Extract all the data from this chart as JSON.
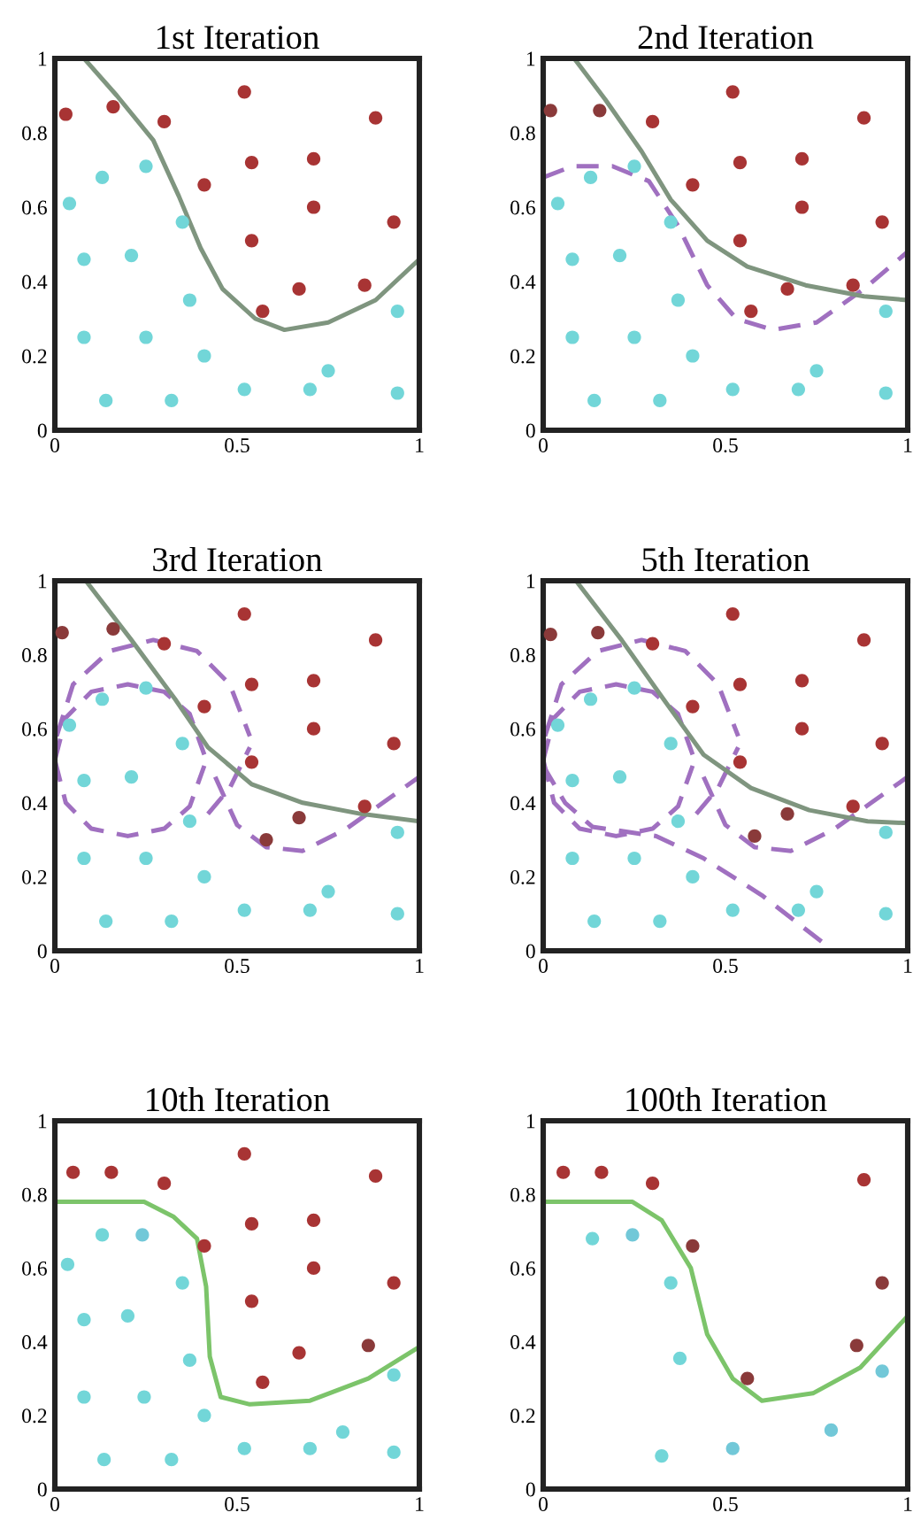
{
  "chart_data": [
    {
      "type": "scatter",
      "title": "1st Iteration",
      "xlim": [
        0,
        1
      ],
      "ylim": [
        0,
        1
      ],
      "xticks": [
        0,
        0.5,
        1
      ],
      "yticks": [
        0,
        0.2,
        0.4,
        0.6,
        0.8,
        1
      ],
      "series": [
        {
          "type": "line",
          "color": "#7f957f",
          "line_style": "solid",
          "x": [
            0.08,
            0.17,
            0.27,
            0.34,
            0.4,
            0.46,
            0.55,
            0.63,
            0.75,
            0.88,
            1.0
          ],
          "values": [
            1.0,
            0.9,
            0.78,
            0.63,
            0.49,
            0.38,
            0.3,
            0.27,
            0.29,
            0.35,
            0.46
          ]
        },
        {
          "marker": "circle",
          "color": "#a83434",
          "x": [
            0.03,
            0.16,
            0.3,
            0.52,
            0.88,
            0.54,
            0.71,
            0.41,
            0.71,
            0.93,
            0.54,
            0.67,
            0.85,
            0.57
          ],
          "values": [
            0.85,
            0.87,
            0.83,
            0.91,
            0.84,
            0.72,
            0.73,
            0.66,
            0.6,
            0.56,
            0.51,
            0.38,
            0.39,
            0.32
          ]
        },
        {
          "marker": "circle",
          "color": "#72d6d8",
          "x": [
            0.13,
            0.25,
            0.04,
            0.35,
            0.08,
            0.21,
            0.37,
            0.08,
            0.25,
            0.41,
            0.14,
            0.32,
            0.52,
            0.7,
            0.75,
            0.94,
            0.94
          ],
          "values": [
            0.68,
            0.71,
            0.61,
            0.56,
            0.46,
            0.47,
            0.35,
            0.25,
            0.25,
            0.2,
            0.08,
            0.08,
            0.11,
            0.11,
            0.16,
            0.1,
            0.32
          ]
        }
      ]
    },
    {
      "type": "scatter",
      "title": "2nd Iteration",
      "xlim": [
        0,
        1
      ],
      "ylim": [
        0,
        1
      ],
      "xticks": [
        0,
        0.5,
        1
      ],
      "yticks": [
        0,
        0.2,
        0.4,
        0.6,
        0.8,
        1
      ],
      "series": [
        {
          "type": "line",
          "color": "#a070c0",
          "line_style": "dashed",
          "x": [
            0.0,
            0.08,
            0.19,
            0.29,
            0.37,
            0.45,
            0.53,
            0.63,
            0.75,
            0.88,
            1.0
          ],
          "values": [
            0.68,
            0.71,
            0.71,
            0.67,
            0.55,
            0.39,
            0.3,
            0.27,
            0.29,
            0.38,
            0.48
          ]
        },
        {
          "type": "line",
          "color": "#7f957f",
          "line_style": "solid",
          "x": [
            0.085,
            0.17,
            0.27,
            0.35,
            0.45,
            0.56,
            0.72,
            0.88,
            1.0
          ],
          "values": [
            1.0,
            0.89,
            0.75,
            0.62,
            0.51,
            0.44,
            0.39,
            0.36,
            0.35
          ]
        },
        {
          "marker": "circle",
          "color": "#a83434",
          "x": [
            0.3,
            0.52,
            0.88,
            0.54,
            0.71,
            0.41,
            0.71,
            0.93,
            0.54,
            0.67,
            0.85,
            0.57
          ],
          "values": [
            0.83,
            0.91,
            0.84,
            0.72,
            0.73,
            0.66,
            0.6,
            0.56,
            0.51,
            0.38,
            0.39,
            0.32
          ]
        },
        {
          "marker": "circle",
          "color": "#8a3a3a",
          "x": [
            0.02,
            0.155
          ],
          "values": [
            0.86,
            0.86
          ]
        },
        {
          "marker": "circle",
          "color": "#72d6d8",
          "x": [
            0.13,
            0.25,
            0.04,
            0.35,
            0.08,
            0.21,
            0.37,
            0.08,
            0.25,
            0.41,
            0.14,
            0.32,
            0.52,
            0.7,
            0.75,
            0.94,
            0.94
          ],
          "values": [
            0.68,
            0.71,
            0.61,
            0.56,
            0.46,
            0.47,
            0.35,
            0.25,
            0.25,
            0.2,
            0.08,
            0.08,
            0.11,
            0.11,
            0.16,
            0.1,
            0.32
          ]
        }
      ]
    },
    {
      "type": "scatter",
      "title": "3rd Iteration",
      "xlim": [
        0,
        1
      ],
      "ylim": [
        0,
        1
      ],
      "xticks": [
        0,
        0.5,
        1
      ],
      "yticks": [
        0,
        0.2,
        0.4,
        0.6,
        0.8,
        1
      ],
      "series": [
        {
          "type": "line",
          "color": "#a070c0",
          "line_style": "dashed",
          "x": [
            0.0,
            0.03,
            0.1,
            0.2,
            0.3,
            0.37,
            0.41
          ],
          "values": [
            0.515,
            0.63,
            0.7,
            0.72,
            0.7,
            0.64,
            0.53
          ]
        },
        {
          "type": "line",
          "color": "#a070c0",
          "line_style": "dashed",
          "x": [
            0.0,
            0.03,
            0.1,
            0.2,
            0.3,
            0.37,
            0.41
          ],
          "values": [
            0.515,
            0.4,
            0.33,
            0.31,
            0.33,
            0.39,
            0.5
          ]
        },
        {
          "type": "line",
          "color": "#a070c0",
          "line_style": "dashed",
          "x": [
            0.005,
            0.05,
            0.15,
            0.27,
            0.39,
            0.48,
            0.535
          ],
          "values": [
            0.58,
            0.72,
            0.81,
            0.84,
            0.81,
            0.72,
            0.58
          ]
        },
        {
          "type": "line",
          "color": "#a070c0",
          "line_style": "dashed",
          "x": [
            0.42,
            0.48,
            0.535
          ],
          "values": [
            0.37,
            0.44,
            0.55
          ]
        },
        {
          "type": "line",
          "color": "#a070c0",
          "line_style": "dashed",
          "x": [
            0.44,
            0.5,
            0.58,
            0.68,
            0.8,
            0.9,
            1.0
          ],
          "values": [
            0.47,
            0.34,
            0.28,
            0.27,
            0.33,
            0.4,
            0.47
          ]
        },
        {
          "type": "line",
          "color": "#7f957f",
          "line_style": "solid",
          "x": [
            0.085,
            0.21,
            0.33,
            0.42,
            0.54,
            0.68,
            0.84,
            1.0
          ],
          "values": [
            1.0,
            0.84,
            0.68,
            0.55,
            0.45,
            0.4,
            0.37,
            0.35
          ]
        },
        {
          "marker": "circle",
          "color": "#a83434",
          "x": [
            0.3,
            0.52,
            0.88,
            0.54,
            0.71,
            0.41,
            0.71,
            0.93,
            0.54,
            0.85
          ],
          "values": [
            0.83,
            0.91,
            0.84,
            0.72,
            0.73,
            0.66,
            0.6,
            0.56,
            0.51,
            0.39
          ]
        },
        {
          "marker": "circle",
          "color": "#8a3a3a",
          "x": [
            0.02,
            0.16,
            0.58,
            0.67
          ],
          "values": [
            0.86,
            0.87,
            0.3,
            0.36
          ]
        },
        {
          "marker": "circle",
          "color": "#72d6d8",
          "x": [
            0.13,
            0.25,
            0.04,
            0.35,
            0.08,
            0.21,
            0.37,
            0.08,
            0.25,
            0.41,
            0.14,
            0.32,
            0.52,
            0.7,
            0.75,
            0.94,
            0.94
          ],
          "values": [
            0.68,
            0.71,
            0.61,
            0.56,
            0.46,
            0.47,
            0.35,
            0.25,
            0.25,
            0.2,
            0.08,
            0.08,
            0.11,
            0.11,
            0.16,
            0.1,
            0.32
          ]
        }
      ]
    },
    {
      "type": "scatter",
      "title": "5th Iteration",
      "xlim": [
        0,
        1
      ],
      "ylim": [
        0,
        1
      ],
      "xticks": [
        0,
        0.5,
        1
      ],
      "yticks": [
        0,
        0.2,
        0.4,
        0.6,
        0.8,
        1
      ],
      "series": [
        {
          "type": "line",
          "color": "#a070c0",
          "line_style": "dashed",
          "x": [
            0.0,
            0.03,
            0.1,
            0.2,
            0.3,
            0.37,
            0.41
          ],
          "values": [
            0.515,
            0.63,
            0.7,
            0.72,
            0.7,
            0.64,
            0.53
          ]
        },
        {
          "type": "line",
          "color": "#a070c0",
          "line_style": "dashed",
          "x": [
            0.0,
            0.03,
            0.1,
            0.2,
            0.3,
            0.37,
            0.41
          ],
          "values": [
            0.515,
            0.4,
            0.33,
            0.31,
            0.33,
            0.39,
            0.5
          ]
        },
        {
          "type": "line",
          "color": "#a070c0",
          "line_style": "dashed",
          "x": [
            0.005,
            0.05,
            0.15,
            0.27,
            0.39,
            0.48,
            0.535
          ],
          "values": [
            0.58,
            0.72,
            0.81,
            0.84,
            0.81,
            0.72,
            0.58
          ]
        },
        {
          "type": "line",
          "color": "#a070c0",
          "line_style": "dashed",
          "x": [
            0.42,
            0.48,
            0.535
          ],
          "values": [
            0.37,
            0.44,
            0.55
          ]
        },
        {
          "type": "line",
          "color": "#a070c0",
          "line_style": "dashed",
          "x": [
            0.44,
            0.5,
            0.58,
            0.68,
            0.8,
            0.9,
            1.0
          ],
          "values": [
            0.47,
            0.34,
            0.28,
            0.27,
            0.33,
            0.4,
            0.47
          ]
        },
        {
          "type": "line",
          "color": "#a070c0",
          "line_style": "dashed",
          "x": [
            0.0,
            0.06,
            0.135,
            0.31,
            0.44,
            0.6,
            0.77
          ],
          "values": [
            0.5,
            0.4,
            0.335,
            0.31,
            0.25,
            0.15,
            0.02
          ]
        },
        {
          "type": "line",
          "color": "#7f957f",
          "line_style": "solid",
          "x": [
            0.09,
            0.215,
            0.33,
            0.44,
            0.57,
            0.73,
            0.89,
            1.0
          ],
          "values": [
            1.0,
            0.84,
            0.68,
            0.53,
            0.44,
            0.38,
            0.35,
            0.345
          ]
        },
        {
          "marker": "circle",
          "color": "#a83434",
          "x": [
            0.3,
            0.52,
            0.88,
            0.54,
            0.71,
            0.41,
            0.71,
            0.93,
            0.54,
            0.85
          ],
          "values": [
            0.83,
            0.91,
            0.84,
            0.72,
            0.73,
            0.66,
            0.6,
            0.56,
            0.51,
            0.39
          ]
        },
        {
          "marker": "circle",
          "color": "#8a3a3a",
          "x": [
            0.02,
            0.15,
            0.58,
            0.67
          ],
          "values": [
            0.855,
            0.86,
            0.31,
            0.37
          ]
        },
        {
          "marker": "circle",
          "color": "#72d6d8",
          "x": [
            0.13,
            0.25,
            0.04,
            0.35,
            0.08,
            0.21,
            0.37,
            0.08,
            0.25,
            0.41,
            0.14,
            0.32,
            0.52,
            0.7,
            0.75,
            0.94,
            0.94
          ],
          "values": [
            0.68,
            0.71,
            0.61,
            0.56,
            0.46,
            0.47,
            0.35,
            0.25,
            0.25,
            0.2,
            0.08,
            0.08,
            0.11,
            0.11,
            0.16,
            0.1,
            0.32
          ]
        }
      ]
    },
    {
      "type": "scatter",
      "title": "10th Iteration",
      "xlim": [
        0,
        1
      ],
      "ylim": [
        0,
        1
      ],
      "xticks": [
        0,
        0.5,
        1
      ],
      "yticks": [
        0,
        0.2,
        0.4,
        0.6,
        0.8,
        1
      ],
      "series": [
        {
          "type": "line",
          "color": "#7cc46a",
          "line_style": "solid",
          "x": [
            0.0,
            0.245,
            0.325,
            0.39,
            0.415,
            0.425,
            0.455,
            0.535,
            0.7,
            0.86,
            0.99
          ],
          "values": [
            0.78,
            0.78,
            0.74,
            0.68,
            0.55,
            0.36,
            0.25,
            0.23,
            0.24,
            0.3,
            0.38
          ]
        },
        {
          "marker": "circle",
          "color": "#a83434",
          "x": [
            0.05,
            0.155,
            0.3,
            0.52,
            0.88,
            0.54,
            0.71,
            0.41,
            0.71,
            0.93,
            0.54,
            0.67,
            0.57
          ],
          "values": [
            0.86,
            0.86,
            0.83,
            0.91,
            0.85,
            0.72,
            0.73,
            0.66,
            0.6,
            0.56,
            0.51,
            0.37,
            0.29
          ]
        },
        {
          "marker": "circle",
          "color": "#8a3a3a",
          "x": [
            0.86
          ],
          "values": [
            0.39
          ]
        },
        {
          "marker": "circle",
          "color": "#72d6d8",
          "x": [
            0.13,
            0.035,
            0.35,
            0.08,
            0.2,
            0.37,
            0.08,
            0.245,
            0.41,
            0.52,
            0.7,
            0.79,
            0.135,
            0.32,
            0.93,
            0.93
          ],
          "values": [
            0.69,
            0.61,
            0.56,
            0.46,
            0.47,
            0.35,
            0.25,
            0.25,
            0.2,
            0.11,
            0.11,
            0.155,
            0.08,
            0.08,
            0.1,
            0.31
          ]
        },
        {
          "marker": "circle",
          "color": "#72c8d8",
          "x": [
            0.24
          ],
          "values": [
            0.69
          ]
        }
      ]
    },
    {
      "type": "scatter",
      "title": "100th Iteration",
      "xlim": [
        0,
        1
      ],
      "ylim": [
        0,
        1
      ],
      "xticks": [
        0,
        0.5,
        1
      ],
      "yticks": [
        0,
        0.2,
        0.4,
        0.6,
        0.8,
        1
      ],
      "series": [
        {
          "type": "line",
          "color": "#7cc46a",
          "line_style": "solid",
          "x": [
            0.0,
            0.245,
            0.325,
            0.405,
            0.45,
            0.52,
            0.6,
            0.74,
            0.87,
            1.0
          ],
          "values": [
            0.78,
            0.78,
            0.73,
            0.6,
            0.42,
            0.3,
            0.24,
            0.26,
            0.33,
            0.47
          ]
        },
        {
          "marker": "circle",
          "color": "#a83434",
          "x": [
            0.055,
            0.16,
            0.3,
            0.88
          ],
          "values": [
            0.86,
            0.86,
            0.83,
            0.84
          ]
        },
        {
          "marker": "circle",
          "color": "#8a3a3a",
          "x": [
            0.41,
            0.56,
            0.86,
            0.93
          ],
          "values": [
            0.66,
            0.3,
            0.39,
            0.56
          ]
        },
        {
          "marker": "circle",
          "color": "#72d6d8",
          "x": [
            0.135,
            0.35,
            0.375,
            0.325
          ],
          "values": [
            0.68,
            0.56,
            0.355,
            0.09
          ]
        },
        {
          "marker": "circle",
          "color": "#72c8d8",
          "x": [
            0.245,
            0.52,
            0.79,
            0.93
          ],
          "values": [
            0.69,
            0.11,
            0.16,
            0.32
          ]
        }
      ]
    }
  ]
}
